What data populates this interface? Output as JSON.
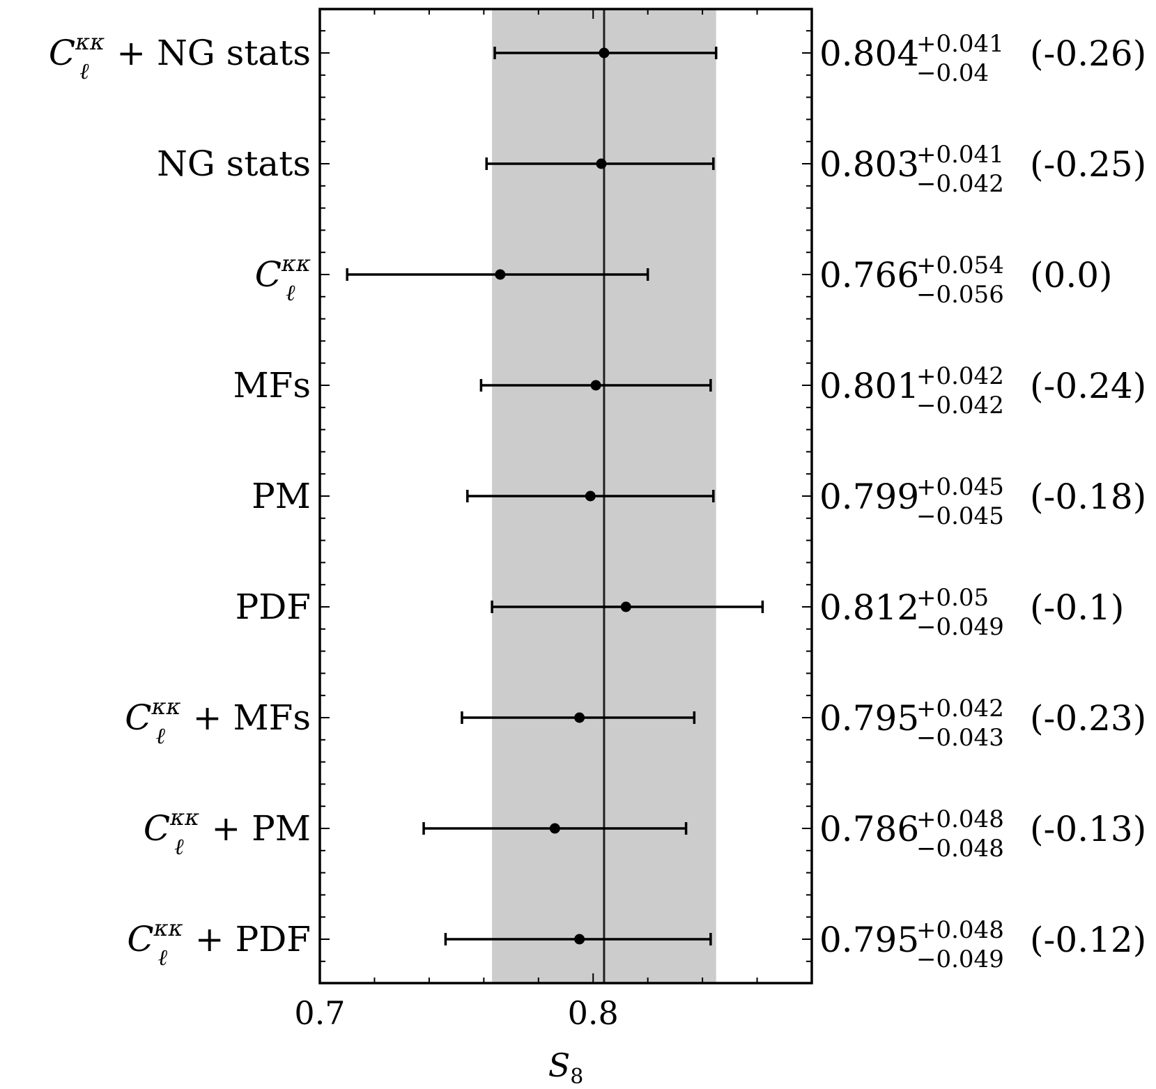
{
  "chart_data": {
    "type": "scatter",
    "xlabel": "S8",
    "xlabel_main": "S",
    "xlabel_sub": "8",
    "xlim": [
      0.7,
      0.88
    ],
    "x_ticks": [
      0.7,
      0.8
    ],
    "x_tick_labels": [
      "0.7",
      "0.8"
    ],
    "reference_line": 0.804,
    "reference_band": [
      0.763,
      0.845
    ],
    "band_color": "#cccccc",
    "rows": [
      {
        "label": "C_ℓ^κκ + NG stats",
        "label_suffix": "+ NG stats",
        "has_cl": true,
        "value": 0.804,
        "err_plus": 0.041,
        "err_minus": 0.04,
        "value_text": "0.804",
        "plus_text": "+0.041",
        "minus_text": "−0.04",
        "shift_text": "(-0.26)"
      },
      {
        "label": "NG stats",
        "label_suffix": "NG stats",
        "has_cl": false,
        "value": 0.803,
        "err_plus": 0.041,
        "err_minus": 0.042,
        "value_text": "0.803",
        "plus_text": "+0.041",
        "minus_text": "−0.042",
        "shift_text": "(-0.25)"
      },
      {
        "label": "C_ℓ^κκ",
        "label_suffix": "",
        "has_cl": true,
        "value": 0.766,
        "err_plus": 0.054,
        "err_minus": 0.056,
        "value_text": "0.766",
        "plus_text": "+0.054",
        "minus_text": "−0.056",
        "shift_text": "(0.0)"
      },
      {
        "label": "MFs",
        "label_suffix": "MFs",
        "has_cl": false,
        "value": 0.801,
        "err_plus": 0.042,
        "err_minus": 0.042,
        "value_text": "0.801",
        "plus_text": "+0.042",
        "minus_text": "−0.042",
        "shift_text": "(-0.24)"
      },
      {
        "label": "PM",
        "label_suffix": "PM",
        "has_cl": false,
        "value": 0.799,
        "err_plus": 0.045,
        "err_minus": 0.045,
        "value_text": "0.799",
        "plus_text": "+0.045",
        "minus_text": "−0.045",
        "shift_text": "(-0.18)"
      },
      {
        "label": "PDF",
        "label_suffix": "PDF",
        "has_cl": false,
        "value": 0.812,
        "err_plus": 0.05,
        "err_minus": 0.049,
        "value_text": "0.812",
        "plus_text": "+0.05",
        "minus_text": "−0.049",
        "shift_text": "(-0.1)"
      },
      {
        "label": "C_ℓ^κκ + MFs",
        "label_suffix": "+ MFs",
        "has_cl": true,
        "value": 0.795,
        "err_plus": 0.042,
        "err_minus": 0.043,
        "value_text": "0.795",
        "plus_text": "+0.042",
        "minus_text": "−0.043",
        "shift_text": "(-0.23)"
      },
      {
        "label": "C_ℓ^κκ + PM",
        "label_suffix": "+ PM",
        "has_cl": true,
        "value": 0.786,
        "err_plus": 0.048,
        "err_minus": 0.048,
        "value_text": "0.786",
        "plus_text": "+0.048",
        "minus_text": "−0.048",
        "shift_text": "(-0.13)"
      },
      {
        "label": "C_ℓ^κκ + PDF",
        "label_suffix": "+ PDF",
        "has_cl": true,
        "value": 0.795,
        "err_plus": 0.048,
        "err_minus": 0.049,
        "value_text": "0.795",
        "plus_text": "+0.048",
        "minus_text": "−0.049",
        "shift_text": "(-0.12)"
      }
    ],
    "cl_symbol": {
      "main": "C",
      "sub": "ℓ",
      "sup": "κκ"
    }
  }
}
